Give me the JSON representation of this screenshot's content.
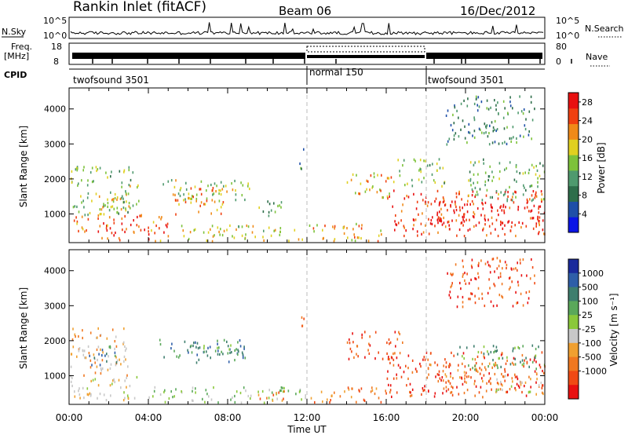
{
  "header": {
    "title": "Rankin Inlet (fitACF)",
    "beam": "Beam 06",
    "date": "16/Dec/2012"
  },
  "strip": {
    "nsky_label": "N.Sky",
    "nsky_ticks": [
      "10^5",
      "10^0"
    ],
    "nsearch_label": "N.Search",
    "freq_label": "Freq.",
    "freq_unit": "[MHz]",
    "freq_ticks": [
      "18",
      "8"
    ],
    "nave_ticks": [
      "80",
      "0"
    ],
    "nave_label": "Nave",
    "cpid_label": "CPID",
    "cpid_segments": [
      {
        "name": "twofsound 3501",
        "start_h": 0,
        "end_h": 12
      },
      {
        "name": "normal 150",
        "start_h": 12,
        "end_h": 18
      },
      {
        "name": "twofsound 3501",
        "start_h": 18,
        "end_h": 24
      }
    ]
  },
  "colors": {
    "power": [
      "#0a14e6",
      "#1f4fa8",
      "#2e6e4a",
      "#4f9a6e",
      "#7dc23a",
      "#e0d020",
      "#f08a18",
      "#f04010",
      "#e81010"
    ],
    "velocity": [
      "#1a2a9c",
      "#2e5ea8",
      "#3e7e6e",
      "#5aa85a",
      "#8ac83a",
      "#c8c8c8",
      "#f0a030",
      "#f07820",
      "#f04a14",
      "#e81010"
    ]
  },
  "chart_data": [
    {
      "type": "heatmap",
      "quantity": "power",
      "xlabel": "Time UT",
      "ylabel": "Slant Range [km]",
      "xlim": [
        0,
        24
      ],
      "ylim": [
        180,
        4600
      ],
      "x_ticks": [
        "00:00",
        "04:00",
        "08:00",
        "12:00",
        "16:00",
        "20:00",
        "00:00"
      ],
      "y_ticks": [
        1000,
        2000,
        3000,
        4000
      ],
      "colorbar_label": "Power [dB]",
      "colorbar_ticks": [
        4,
        8,
        12,
        16,
        20,
        24,
        28
      ],
      "colorbar_range": [
        0,
        30
      ],
      "regions": [
        {
          "t": [
            0.0,
            5.0
          ],
          "r": [
            250,
            1000
          ],
          "level": 24
        },
        {
          "t": [
            0.0,
            3.2
          ],
          "r": [
            1000,
            2400
          ],
          "level": 14
        },
        {
          "t": [
            1.5,
            3.6
          ],
          "r": [
            1150,
            1850
          ],
          "level": 18
        },
        {
          "t": [
            4.5,
            9.2
          ],
          "r": [
            1400,
            2000
          ],
          "level": 16
        },
        {
          "t": [
            5.2,
            7.8
          ],
          "r": [
            1000,
            1800
          ],
          "level": 22
        },
        {
          "t": [
            5.5,
            12.0
          ],
          "r": [
            250,
            700
          ],
          "level": 18
        },
        {
          "t": [
            9.5,
            10.8
          ],
          "r": [
            950,
            1500
          ],
          "level": 12
        },
        {
          "t": [
            11.6,
            12.0
          ],
          "r": [
            2300,
            2900
          ],
          "level": 10
        },
        {
          "t": [
            12.0,
            16.0
          ],
          "r": [
            250,
            750
          ],
          "level": 20
        },
        {
          "t": [
            14.0,
            16.5
          ],
          "r": [
            1500,
            2200
          ],
          "level": 20
        },
        {
          "t": [
            16.0,
            24.0
          ],
          "r": [
            400,
            1700
          ],
          "level": 26
        },
        {
          "t": [
            18.5,
            24.0
          ],
          "r": [
            700,
            1400
          ],
          "level": 30
        },
        {
          "t": [
            16.5,
            19.0
          ],
          "r": [
            1800,
            2600
          ],
          "level": 14
        },
        {
          "t": [
            19.0,
            23.5
          ],
          "r": [
            3000,
            4400
          ],
          "level": 10
        },
        {
          "t": [
            20.0,
            24.0
          ],
          "r": [
            1400,
            2600
          ],
          "level": 14
        }
      ]
    },
    {
      "type": "heatmap",
      "quantity": "velocity",
      "xlabel": "Time UT",
      "ylabel": "Slant Range [km]",
      "xlim": [
        0,
        24
      ],
      "ylim": [
        180,
        4600
      ],
      "x_ticks": [
        "00:00",
        "04:00",
        "08:00",
        "12:00",
        "16:00",
        "20:00",
        "00:00"
      ],
      "y_ticks": [
        1000,
        2000,
        3000,
        4000
      ],
      "colorbar_label": "Velocity [m s⁻¹]",
      "colorbar_ticks": [
        1000,
        500,
        100,
        25,
        -25,
        -100,
        -500,
        -1000
      ],
      "regions": [
        {
          "t": [
            0.0,
            3.5
          ],
          "r": [
            300,
            1000
          ],
          "level": 5
        },
        {
          "t": [
            0.0,
            3.0
          ],
          "r": [
            1000,
            2400
          ],
          "level": 6
        },
        {
          "t": [
            1.0,
            2.5
          ],
          "r": [
            1300,
            1900
          ],
          "level": 2
        },
        {
          "t": [
            4.0,
            5.0
          ],
          "r": [
            250,
            700
          ],
          "level": 4
        },
        {
          "t": [
            4.5,
            9.0
          ],
          "r": [
            1400,
            2100
          ],
          "level": 2
        },
        {
          "t": [
            6.0,
            8.5
          ],
          "r": [
            1600,
            1900
          ],
          "level": 3
        },
        {
          "t": [
            5.0,
            12.0
          ],
          "r": [
            250,
            700
          ],
          "level": 4
        },
        {
          "t": [
            9.5,
            11.0
          ],
          "r": [
            250,
            600
          ],
          "level": 7
        },
        {
          "t": [
            11.6,
            12.0
          ],
          "r": [
            2300,
            2800
          ],
          "level": 7
        },
        {
          "t": [
            12.0,
            16.0
          ],
          "r": [
            250,
            700
          ],
          "level": 7
        },
        {
          "t": [
            14.0,
            16.8
          ],
          "r": [
            1500,
            2300
          ],
          "level": 8
        },
        {
          "t": [
            16.0,
            24.0
          ],
          "r": [
            400,
            1700
          ],
          "level": 8
        },
        {
          "t": [
            18.0,
            22.0
          ],
          "r": [
            800,
            1400
          ],
          "level": 7
        },
        {
          "t": [
            19.5,
            24.0
          ],
          "r": [
            1200,
            1900
          ],
          "level": 3
        },
        {
          "t": [
            19.0,
            23.5
          ],
          "r": [
            3000,
            4400
          ],
          "level": 8
        },
        {
          "t": [
            21.5,
            24.0
          ],
          "r": [
            500,
            1100
          ],
          "level": 5
        }
      ]
    }
  ]
}
